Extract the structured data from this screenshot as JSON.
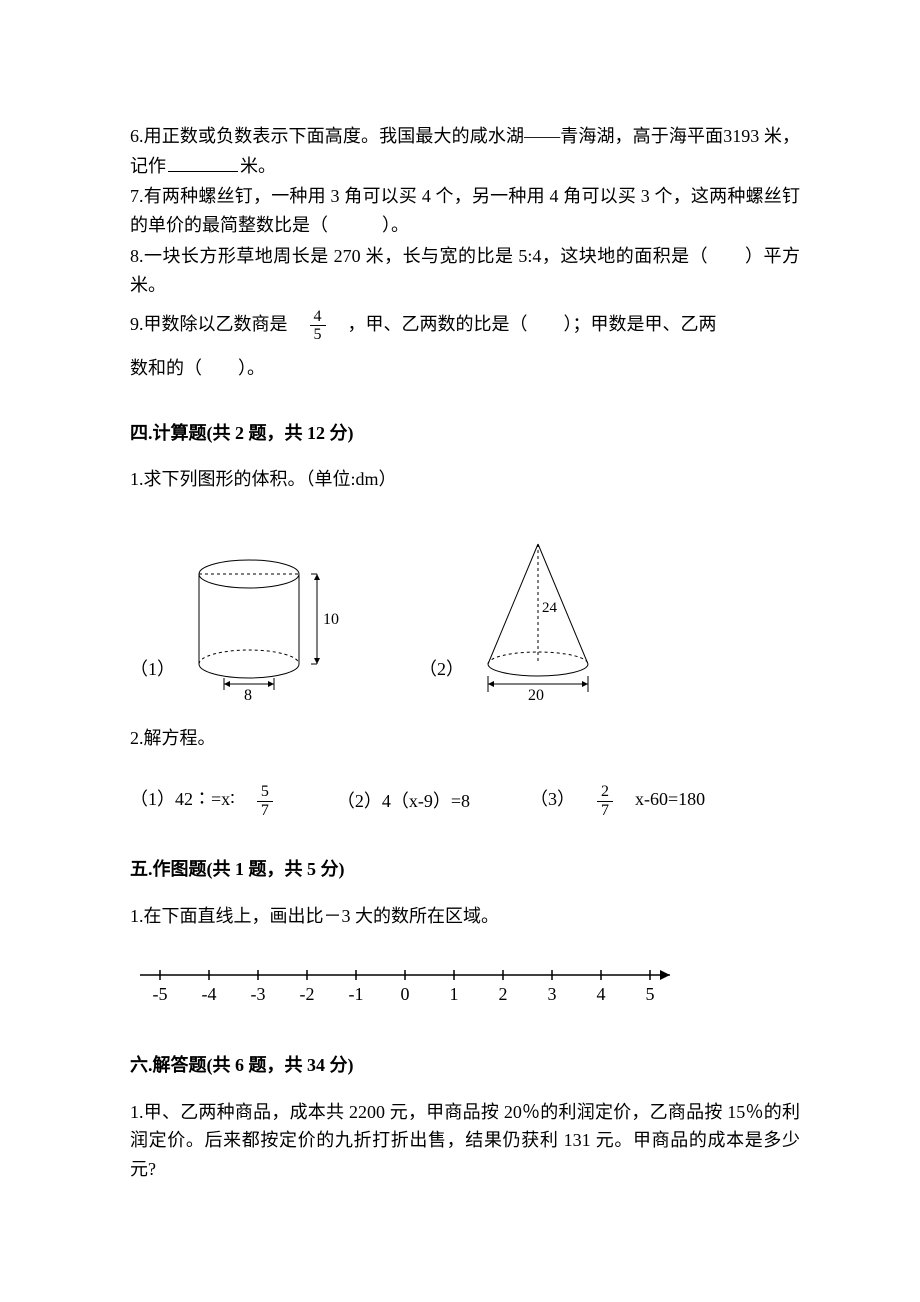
{
  "fill": {
    "q6": "6.用正数或负数表示下面高度。我国最大的咸水湖——青海湖，高于海平面3193 米，记作",
    "q6_tail": "米。",
    "q7": "7.有两种螺丝钉，一种用 3 角可以买 4 个，另一种用 4 角可以买 3 个，这两种螺丝钉的单价的最简整数比是（　　　）。",
    "q8": "8.一块长方形草地周长是 270 米，长与宽的比是 5:4，这块地的面积是（　　）平方米。",
    "q9_a": "9.甲数除以乙数商是",
    "q9_frac_num": "4",
    "q9_frac_den": "5",
    "q9_b": "，甲、乙两数的比是（　　）；甲数是甲、乙两",
    "q9_c": "数和的（　　）。"
  },
  "sec4": {
    "title": "四.计算题(共 2 题，共 12 分)",
    "q1": "1.求下列图形的体积。（单位:dm）",
    "fig1_label": "（1）",
    "fig2_label": "（2）",
    "cylinder": {
      "height_label": "10",
      "diameter_label": "8"
    },
    "cone": {
      "height_label": "24",
      "diameter_label": "20"
    },
    "q2": "2.解方程。",
    "eq1_a": "（1）42∶=x∶",
    "eq1_frac_num": "5",
    "eq1_frac_den": "7",
    "eq2": "（2）4（x-9）=8",
    "eq3_a": "（3）",
    "eq3_frac_num": "2",
    "eq3_frac_den": "7",
    "eq3_b": "x-60=180"
  },
  "sec5": {
    "title": "五.作图题(共 1 题，共 5 分)",
    "q1": "1.在下面直线上，画出比－3 大的数所在区域。",
    "ticks": [
      "-5",
      "-4",
      "-3",
      "-2",
      "-1",
      "0",
      "1",
      "2",
      "3",
      "4",
      "5"
    ]
  },
  "sec6": {
    "title": "六.解答题(共 6 题，共 34 分)",
    "q1": "1.甲、乙两种商品，成本共 2200 元，甲商品按 20％的利润定价，乙商品按 15％的利润定价。后来都按定价的九折打折出售，结果仍获利 131 元。甲商品的成本是多少元?"
  },
  "style": {
    "stroke": "#000000",
    "font": "16px SimSun, serif",
    "dash": "3,3"
  }
}
